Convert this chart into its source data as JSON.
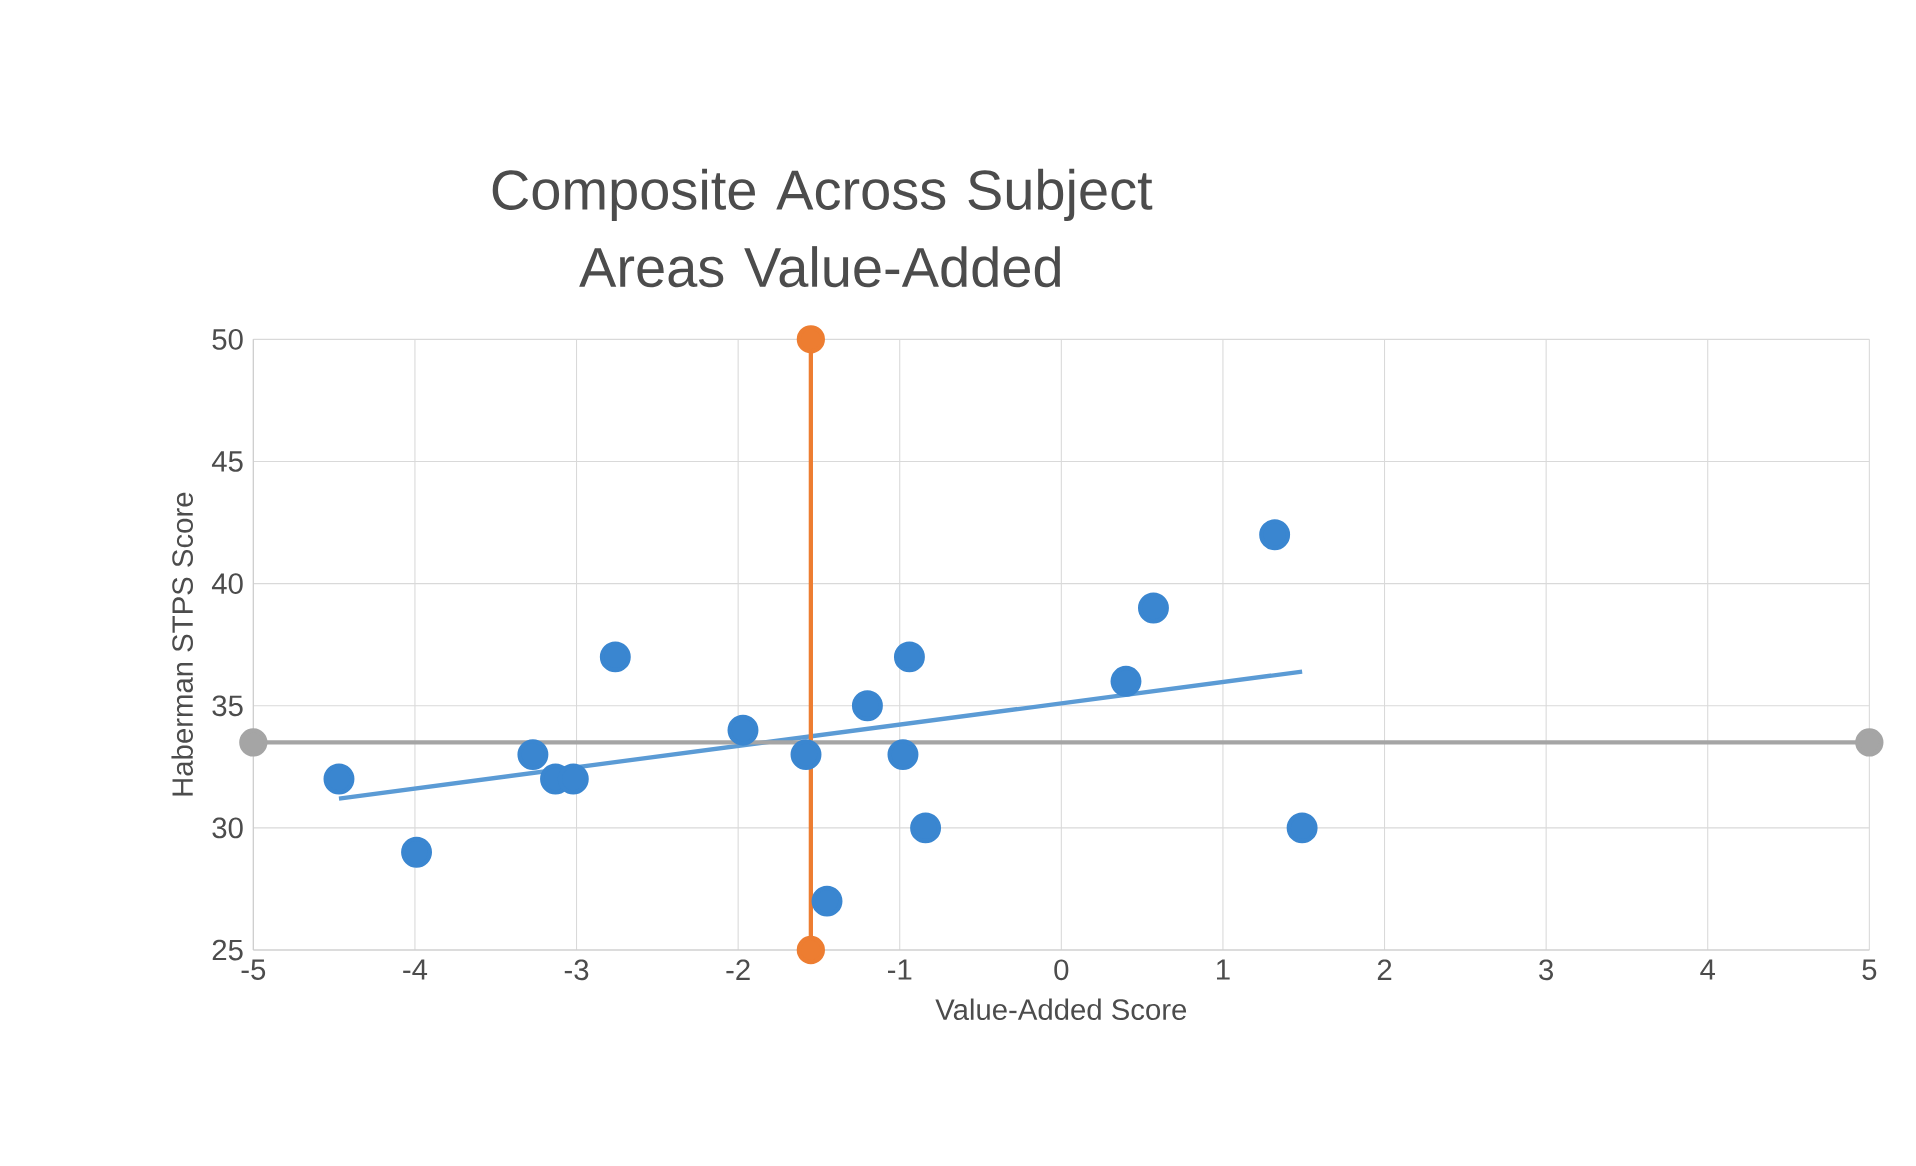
{
  "chart_data": {
    "type": "scatter",
    "title": "Composite Across Subject Areas Value-Added",
    "xlabel": "Value-Added Score",
    "ylabel": "Haberman STPS Score",
    "xlim": [
      -5,
      5
    ],
    "xticks": [
      -5,
      -4,
      -3,
      -2,
      -1,
      0,
      1,
      2,
      3,
      4,
      5
    ],
    "ylim": [
      25,
      50
    ],
    "yticks": [
      25,
      30,
      35,
      40,
      45,
      50
    ],
    "grid": true,
    "series": [
      {
        "color": "#3a86d0",
        "marker": "circle",
        "x": [
          -4.47,
          -3.99,
          -3.27,
          -3.13,
          -3.02,
          -2.76,
          -1.97,
          -1.58,
          -1.45,
          -1.2,
          -0.94,
          -0.98,
          -0.84,
          0.4,
          0.57,
          1.32,
          1.49
        ],
        "values": [
          32,
          29,
          33,
          32,
          32,
          37,
          34,
          33,
          27,
          35,
          37,
          33,
          30,
          36,
          39,
          42,
          30
        ]
      },
      {
        "type": "line",
        "color": "#5b9bd5",
        "marker": "none",
        "x": [
          -4.47,
          1.49
        ],
        "values": [
          31.2,
          36.4
        ]
      },
      {
        "type": "line",
        "color": "#ed7d31",
        "marker": "circle",
        "x": [
          -1.55,
          -1.55
        ],
        "values": [
          25,
          50
        ]
      },
      {
        "type": "line",
        "color": "#a5a5a5",
        "marker": "circle",
        "x": [
          -5,
          5
        ],
        "values": [
          33.5,
          33.5
        ]
      }
    ]
  }
}
